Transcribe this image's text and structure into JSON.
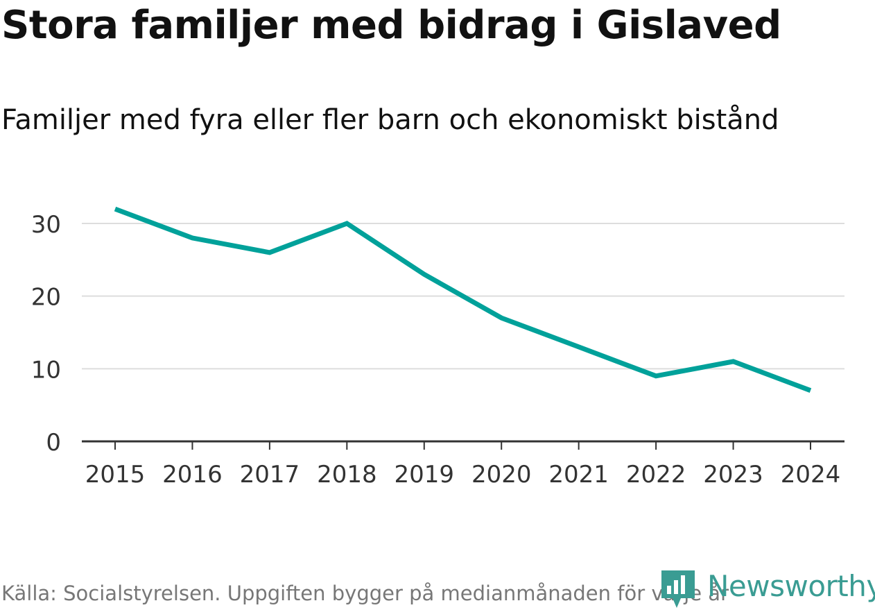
{
  "chart_data": {
    "type": "line",
    "title": "Stora familjer med bidrag i Gislaved",
    "subtitle": "Familjer med fyra eller fler barn och ekonomiskt bistånd",
    "x": [
      "2015",
      "2016",
      "2017",
      "2018",
      "2019",
      "2020",
      "2021",
      "2022",
      "2023",
      "2024"
    ],
    "series": [
      {
        "values": [
          32,
          28,
          26,
          30,
          23,
          17,
          13,
          9,
          11,
          7
        ]
      }
    ],
    "yticks": [
      0,
      10,
      20,
      30
    ],
    "ylim": [
      0,
      33
    ],
    "grid": true,
    "line_color": "#00a19a",
    "grid_color": "#dddddd",
    "axis_color": "#333333"
  },
  "footer": {
    "source": "Källa: Socialstyrelsen. Uppgiften bygger på medianmånaden för varje år",
    "brand": "Newsworthy",
    "brand_color": "#3a9c93"
  }
}
